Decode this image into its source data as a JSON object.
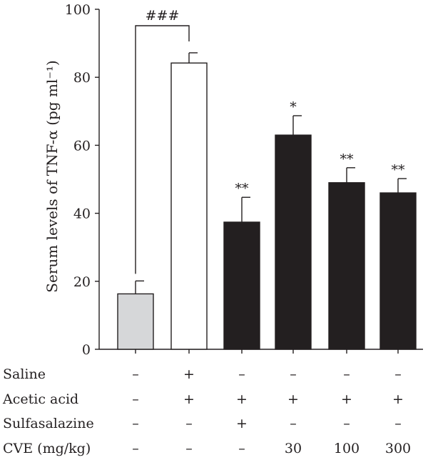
{
  "chart_data": {
    "type": "bar",
    "ylabel": "Serum levels of TNF-α (pg ml⁻¹)",
    "ylim": [
      0,
      100
    ],
    "yticks": [
      0,
      20,
      40,
      60,
      80,
      100
    ],
    "grid": false,
    "bars": [
      {
        "value": 16.3,
        "error": 3.8,
        "fill": "#d6d7d9",
        "sig": ""
      },
      {
        "value": 84.2,
        "error": 3.0,
        "fill": "#ffffff",
        "sig": ""
      },
      {
        "value": 37.4,
        "error": 7.3,
        "fill": "#231f20",
        "sig": "**"
      },
      {
        "value": 63.0,
        "error": 5.7,
        "fill": "#231f20",
        "sig": "*"
      },
      {
        "value": 49.0,
        "error": 4.4,
        "fill": "#231f20",
        "sig": "**"
      },
      {
        "value": 46.0,
        "error": 4.2,
        "fill": "#231f20",
        "sig": "**"
      }
    ],
    "comparison": {
      "from_bar": 0,
      "to_bar": 1,
      "label": "###"
    },
    "treatment_table": [
      {
        "label": "Saline",
        "values": [
          "–",
          "+",
          "–",
          "–",
          "–",
          "–"
        ]
      },
      {
        "label": "Acetic acid",
        "values": [
          "–",
          "+",
          "+",
          "+",
          "+",
          "+"
        ]
      },
      {
        "label": "Sulfasalazine",
        "values": [
          "–",
          "–",
          "+",
          "–",
          "–",
          "–"
        ]
      },
      {
        "label": "CVE (mg/kg)",
        "values": [
          "–",
          "–",
          "–",
          "30",
          "100",
          "300"
        ]
      }
    ]
  }
}
